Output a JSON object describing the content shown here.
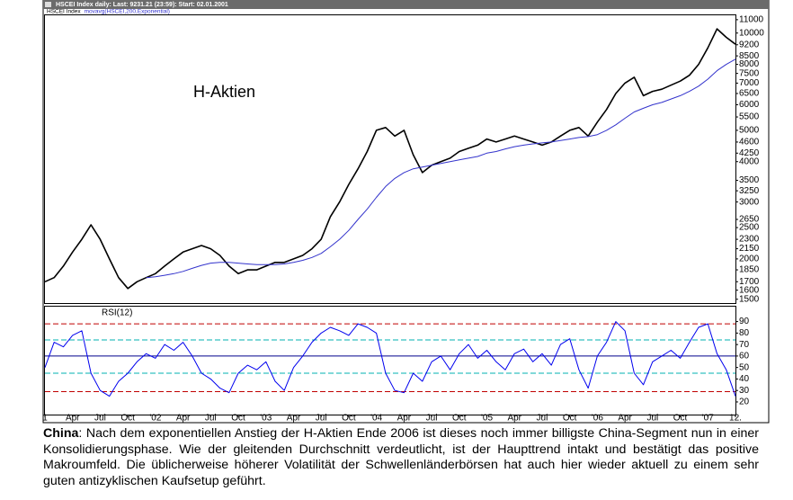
{
  "chart_data": [
    {
      "type": "line",
      "title": "HSCEI Index daily: Last: 9231.21 (23:59): Start: 02.01.2001",
      "annotation": "H-Aktien",
      "log_scale": true,
      "x": [
        0,
        1,
        2,
        3,
        4,
        5,
        6,
        7,
        8,
        9,
        10,
        11,
        12,
        13,
        14,
        15,
        16,
        17,
        18,
        19,
        20,
        21,
        22,
        23,
        24,
        25,
        26,
        27,
        28,
        29,
        30,
        31,
        32,
        33,
        34,
        35,
        36,
        37,
        38,
        39,
        40,
        41,
        42,
        43,
        44,
        45,
        46,
        47,
        48,
        49,
        50,
        51,
        52,
        53,
        54,
        55,
        56,
        57,
        58,
        59,
        60,
        61,
        62,
        63,
        64,
        65,
        66,
        67,
        68,
        69,
        70,
        71,
        72,
        73,
        74,
        75
      ],
      "xlim": [
        0,
        75
      ],
      "ylim": [
        1460,
        11350
      ],
      "yticks": [
        1500,
        1600,
        1700,
        1850,
        2000,
        2150,
        2300,
        2500,
        2650,
        3000,
        3250,
        3500,
        4000,
        4250,
        4600,
        5000,
        5500,
        6000,
        6500,
        7000,
        7500,
        8000,
        8500,
        9200,
        10000,
        11000
      ],
      "series": [
        {
          "name": "HSCEI Index",
          "color": "#000000",
          "values": [
            1700,
            1750,
            1900,
            2100,
            2300,
            2550,
            2300,
            2000,
            1750,
            1620,
            1700,
            1750,
            1800,
            1900,
            2000,
            2100,
            2150,
            2200,
            2150,
            2050,
            1900,
            1800,
            1850,
            1850,
            1900,
            1950,
            1950,
            2000,
            2050,
            2150,
            2300,
            2700,
            3000,
            3400,
            3800,
            4300,
            5000,
            5100,
            4800,
            5000,
            4200,
            3700,
            3900,
            4000,
            4100,
            4300,
            4400,
            4500,
            4700,
            4600,
            4700,
            4800,
            4700,
            4600,
            4500,
            4600,
            4800,
            5000,
            5100,
            4800,
            5300,
            5800,
            6500,
            7000,
            7300,
            6400,
            6600,
            6700,
            6900,
            7100,
            7400,
            8000,
            9000,
            10300,
            9700,
            9231
          ]
        },
        {
          "name": "movavg(HSCEI,200,Exponential)",
          "color": "#3333cc",
          "values": [
            null,
            null,
            null,
            null,
            null,
            null,
            null,
            null,
            null,
            null,
            null,
            1750,
            1760,
            1780,
            1800,
            1830,
            1870,
            1910,
            1940,
            1950,
            1950,
            1940,
            1930,
            1920,
            1920,
            1920,
            1930,
            1950,
            1980,
            2020,
            2080,
            2180,
            2300,
            2450,
            2650,
            2850,
            3100,
            3350,
            3550,
            3700,
            3800,
            3850,
            3900,
            3950,
            4000,
            4050,
            4100,
            4150,
            4250,
            4300,
            4380,
            4450,
            4500,
            4540,
            4570,
            4600,
            4650,
            4700,
            4750,
            4780,
            4850,
            5000,
            5200,
            5450,
            5700,
            5850,
            6000,
            6100,
            6250,
            6400,
            6600,
            6850,
            7200,
            7650,
            8000,
            8300
          ]
        }
      ]
    },
    {
      "type": "line",
      "title": "RSI(12)",
      "log_scale": false,
      "x": [
        0,
        1,
        2,
        3,
        4,
        5,
        6,
        7,
        8,
        9,
        10,
        11,
        12,
        13,
        14,
        15,
        16,
        17,
        18,
        19,
        20,
        21,
        22,
        23,
        24,
        25,
        26,
        27,
        28,
        29,
        30,
        31,
        32,
        33,
        34,
        35,
        36,
        37,
        38,
        39,
        40,
        41,
        42,
        43,
        44,
        45,
        46,
        47,
        48,
        49,
        50,
        51,
        52,
        53,
        54,
        55,
        56,
        57,
        58,
        59,
        60,
        61,
        62,
        63,
        64,
        65,
        66,
        67,
        68,
        69,
        70,
        71,
        72,
        73,
        74,
        75
      ],
      "xlim": [
        0,
        75
      ],
      "ylim": [
        9,
        103
      ],
      "yticks": [
        20,
        30,
        40,
        50,
        60,
        70,
        80,
        90
      ],
      "xticks": [
        {
          "value": 0,
          "label": "1"
        },
        {
          "value": 3,
          "label": "Apr"
        },
        {
          "value": 6,
          "label": "Jul"
        },
        {
          "value": 9,
          "label": "Oct"
        },
        {
          "value": 12,
          "label": "'02"
        },
        {
          "value": 15,
          "label": "Apr"
        },
        {
          "value": 18,
          "label": "Jul"
        },
        {
          "value": 21,
          "label": "Oct"
        },
        {
          "value": 24,
          "label": "'03"
        },
        {
          "value": 27,
          "label": "Apr"
        },
        {
          "value": 30,
          "label": "Jul"
        },
        {
          "value": 33,
          "label": "Oct"
        },
        {
          "value": 36,
          "label": "'04"
        },
        {
          "value": 39,
          "label": "Apr"
        },
        {
          "value": 42,
          "label": "Jul"
        },
        {
          "value": 45,
          "label": "Oct"
        },
        {
          "value": 48,
          "label": "'05"
        },
        {
          "value": 51,
          "label": "Apr"
        },
        {
          "value": 54,
          "label": "Jul"
        },
        {
          "value": 57,
          "label": "Oct"
        },
        {
          "value": 60,
          "label": "'06"
        },
        {
          "value": 63,
          "label": "Apr"
        },
        {
          "value": 66,
          "label": "Jul"
        },
        {
          "value": 69,
          "label": "Oct"
        },
        {
          "value": 72,
          "label": "'07"
        },
        {
          "value": 75,
          "label": "12."
        }
      ],
      "levels": [
        {
          "value": 88,
          "color": "#c00000",
          "dash": true
        },
        {
          "value": 74,
          "color": "#00b0b0",
          "dash": true
        },
        {
          "value": 60,
          "color": "#00008b",
          "dash": false
        },
        {
          "value": 45,
          "color": "#00b0b0",
          "dash": true
        },
        {
          "value": 29,
          "color": "#c00000",
          "dash": true
        }
      ],
      "series": [
        {
          "color": "#0000ee",
          "values": [
            50,
            72,
            68,
            78,
            82,
            45,
            30,
            25,
            38,
            45,
            55,
            62,
            58,
            70,
            65,
            72,
            60,
            45,
            40,
            32,
            28,
            45,
            52,
            48,
            55,
            38,
            30,
            50,
            60,
            72,
            80,
            85,
            82,
            78,
            88,
            85,
            80,
            45,
            30,
            28,
            45,
            38,
            55,
            60,
            48,
            62,
            70,
            58,
            65,
            55,
            48,
            62,
            66,
            55,
            62,
            52,
            70,
            75,
            48,
            32,
            60,
            72,
            90,
            82,
            45,
            35,
            55,
            60,
            65,
            58,
            72,
            85,
            88,
            62,
            48,
            25
          ]
        }
      ]
    }
  ],
  "caption": {
    "lead": "China",
    "text": ": Nach dem exponentiellen Anstieg der H-Aktien Ende 2006 ist dieses noch immer billigste China-Segment  nun in einer Konsolidierungsphase. Wie der gleitenden Durchschnitt verdeutlicht, ist der Haupttrend intakt und bestätigt das positive Makroumfeld. Die üblicherweise höherer Volatilität der Schwellenländerbörsen hat auch hier wieder aktuell zu einem sehr guten antizyklischen Kaufsetup geführt."
  }
}
